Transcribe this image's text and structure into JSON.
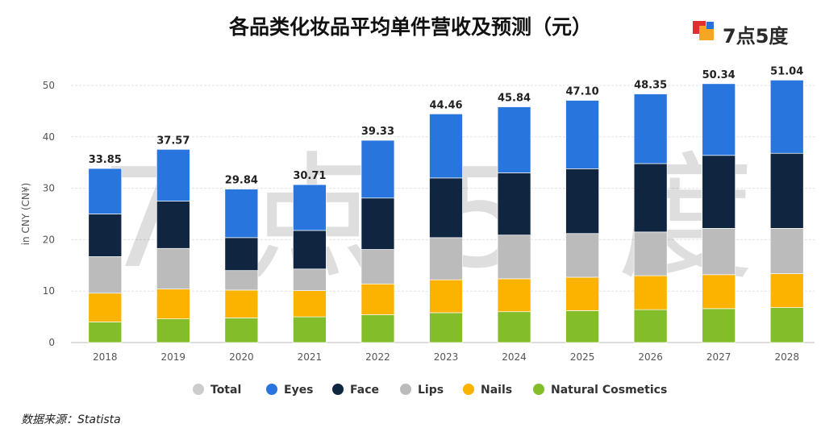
{
  "title": "各品类化妆品平均单件营收及预测（元）",
  "brand": {
    "name": "7点5度",
    "colors": {
      "red": "#e02f2f",
      "orange": "#f5a623",
      "blue": "#2b6fd6"
    }
  },
  "watermark": "7点5度",
  "source": "数据来源：Statista",
  "chart_data": {
    "type": "bar",
    "stacked": true,
    "categories": [
      "2018",
      "2019",
      "2020",
      "2021",
      "2022",
      "2023",
      "2024",
      "2025",
      "2026",
      "2027",
      "2028"
    ],
    "series": [
      {
        "name": "Natural Cosmetics",
        "color": "#84bd2a",
        "values": [
          4.0,
          4.6,
          4.8,
          5.0,
          5.4,
          5.8,
          6.0,
          6.2,
          6.4,
          6.6,
          6.8
        ]
      },
      {
        "name": "Nails",
        "color": "#fbb300",
        "values": [
          5.6,
          5.8,
          5.4,
          5.1,
          6.0,
          6.4,
          6.4,
          6.5,
          6.6,
          6.6,
          6.6
        ]
      },
      {
        "name": "Lips",
        "color": "#bbbbbb",
        "values": [
          7.1,
          7.9,
          3.8,
          4.2,
          6.7,
          8.2,
          8.5,
          8.5,
          8.5,
          9.0,
          8.8
        ]
      },
      {
        "name": "Face",
        "color": "#102640",
        "values": [
          8.3,
          9.2,
          6.4,
          7.5,
          10.0,
          11.6,
          12.1,
          12.6,
          13.3,
          14.2,
          14.6
        ]
      },
      {
        "name": "Eyes",
        "color": "#2876dd",
        "values": [
          8.85,
          10.07,
          9.44,
          8.91,
          11.23,
          12.46,
          12.84,
          13.3,
          13.55,
          13.94,
          14.24
        ]
      }
    ],
    "totals": [
      33.85,
      37.57,
      29.84,
      30.71,
      39.33,
      44.46,
      45.84,
      47.1,
      48.35,
      50.34,
      51.04
    ],
    "total_labels": [
      "33.85",
      "37.57",
      "29.84",
      "30.71",
      "39.33",
      "44.46",
      "45.84",
      "47.10",
      "48.35",
      "50.34",
      "51.04"
    ],
    "yticks": [
      "0",
      "10",
      "20",
      "30",
      "40",
      "50"
    ],
    "ylim": [
      0,
      50
    ],
    "ylabel": "in CNY (CN¥)",
    "xlabel": "",
    "grid": true,
    "legend": {
      "position": "bottom",
      "items": [
        {
          "label": "Total",
          "color": "#cccccc",
          "faded": true
        },
        {
          "label": "Eyes",
          "color": "#2876dd",
          "faded": false
        },
        {
          "label": "Face",
          "color": "#102640",
          "faded": false
        },
        {
          "label": "Lips",
          "color": "#bbbbbb",
          "faded": false
        },
        {
          "label": "Nails",
          "color": "#fbb300",
          "faded": false
        },
        {
          "label": "Natural Cosmetics",
          "color": "#84bd2a",
          "faded": false
        }
      ]
    }
  }
}
